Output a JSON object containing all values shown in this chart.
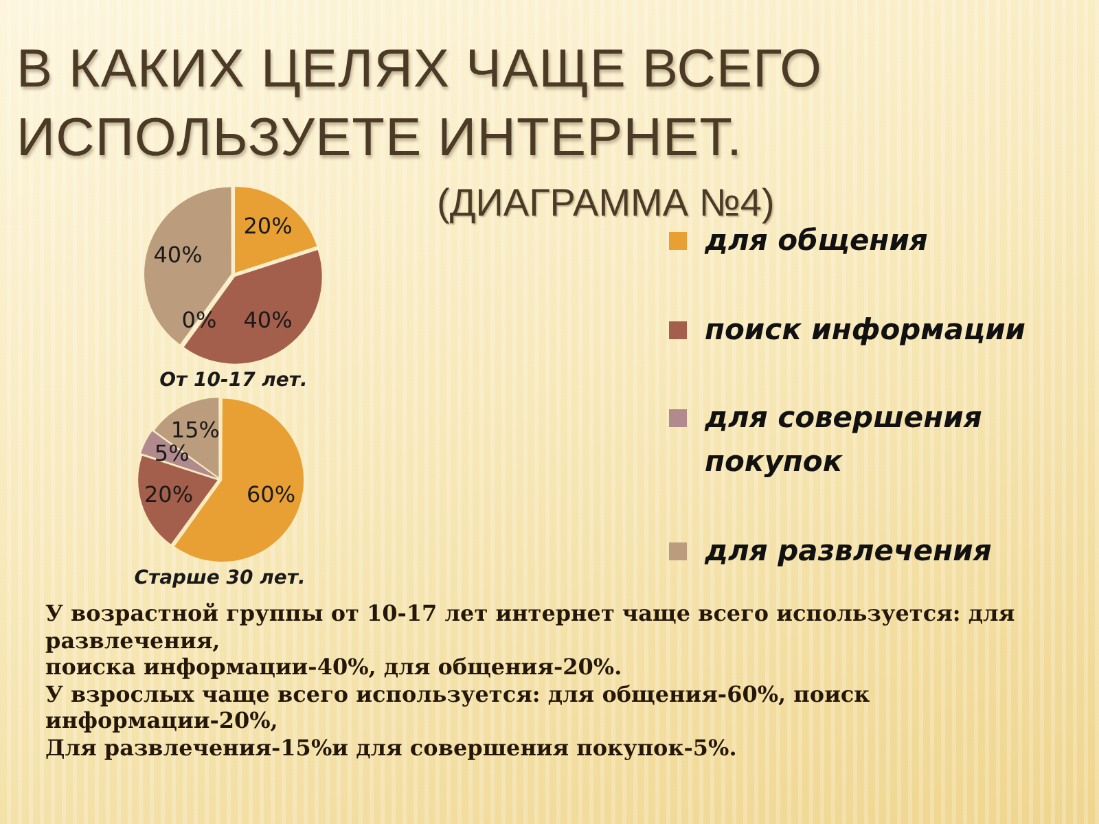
{
  "chart_data": [
    {
      "type": "other",
      "title": "В КАКИХ ЦЕЛЯХ ЧАЩЕ ВСЕГО ИСПОЛЬЗУЕТЕ ИНТЕРНЕТ.",
      "subtitle": "(ДИАГРАММА №4)"
    },
    {
      "type": "pie",
      "categories": [
        "для общения",
        "поиск информации",
        "для совершения покупок",
        "для развлечения"
      ],
      "colors": [
        "#e8a035",
        "#a35f4b",
        "#b08a8c",
        "#bb9c7c"
      ],
      "legend": "right",
      "series": [
        {
          "name": "От 10-17 лет.",
          "values": [
            20,
            40,
            0,
            40
          ],
          "value_labels": [
            "20%",
            "40%",
            "0%",
            "40%"
          ]
        },
        {
          "name": "Старше 30 лет.",
          "values": [
            60,
            20,
            5,
            15
          ],
          "value_labels": [
            "60%",
            "20%",
            "5%",
            "15%"
          ]
        }
      ]
    },
    {
      "type": "other",
      "annotations": [
        "У возрастной группы от 10-17 лет интернет чаще всего используется: для развлечения,",
        "поиска информации-40%, для общения-20%.",
        "У взрослых чаще всего используется: для общения-60%, поиск информации-20%,",
        "Для развлечения-15%и для совершения покупок-5%."
      ]
    }
  ]
}
